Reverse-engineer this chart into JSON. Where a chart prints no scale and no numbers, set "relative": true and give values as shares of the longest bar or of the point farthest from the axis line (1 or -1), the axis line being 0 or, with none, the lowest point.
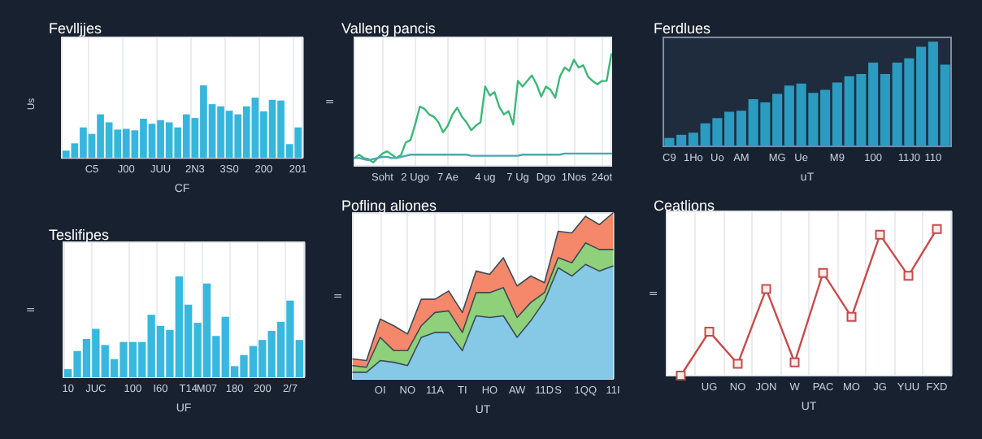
{
  "chart_data": [
    {
      "type": "bar",
      "title": "Fevlljjes",
      "xlabel": "CF",
      "ylabel": "Us",
      "color": "#35b6dc",
      "grid": "x",
      "relative": true,
      "categories": [
        null,
        null,
        null,
        "C5",
        null,
        null,
        null,
        "J00",
        null,
        null,
        null,
        "JUU",
        null,
        null,
        null,
        "2N3",
        null,
        null,
        null,
        "3S0",
        null,
        null,
        null,
        "200",
        null,
        null,
        null,
        "201"
      ],
      "values": [
        0.1,
        0.2,
        0.42,
        0.33,
        0.6,
        0.49,
        0.39,
        0.4,
        0.38,
        0.54,
        0.47,
        0.52,
        0.49,
        0.42,
        0.6,
        0.55,
        1,
        0.74,
        0.71,
        0.65,
        0.6,
        0.71,
        0.83,
        0.64,
        0.8,
        0.79,
        0.19,
        0.42
      ]
    },
    {
      "type": "line",
      "title": "Valleng pancis",
      "ylabel": "ll",
      "grid": "x",
      "marker": "none",
      "relative": true,
      "categories": [
        null,
        null,
        null,
        null,
        null,
        null,
        "Soht",
        null,
        null,
        null,
        null,
        null,
        null,
        "2 Ugo",
        null,
        null,
        null,
        null,
        null,
        null,
        "7 Ae",
        null,
        null,
        null,
        null,
        null,
        null,
        null,
        "4 ug",
        null,
        null,
        null,
        null,
        null,
        null,
        "7 Ug",
        null,
        null,
        null,
        null,
        null,
        "Dgo",
        null,
        null,
        null,
        null,
        null,
        "1Nos",
        null,
        null,
        null,
        null,
        null,
        "24ot",
        null,
        null
      ],
      "series": [
        {
          "color": "#3cb878",
          "values": [
            0.07,
            0.1,
            0.07,
            0.06,
            0.03,
            0.07,
            0.11,
            0.13,
            0.1,
            0.07,
            0.1,
            0.21,
            0.23,
            0.37,
            0.53,
            0.51,
            0.46,
            0.44,
            0.39,
            0.3,
            0.36,
            0.46,
            0.52,
            0.44,
            0.39,
            0.32,
            0.36,
            0.39,
            0.71,
            0.63,
            0.66,
            0.53,
            0.46,
            0.49,
            0.37,
            0.76,
            0.71,
            0.76,
            0.81,
            0.73,
            0.62,
            0.71,
            0.68,
            0.61,
            0.8,
            0.88,
            0.85,
            0.95,
            0.88,
            0.9,
            0.8,
            0.76,
            0.73,
            0.76,
            0.76,
            1
          ]
        },
        {
          "color": "#4aa8b0",
          "values": [
            0.07,
            0.07,
            0.06,
            0.05,
            0.06,
            0.07,
            0.08,
            0.08,
            0.07,
            0.07,
            0.08,
            0.09,
            0.1,
            0.1,
            0.1,
            0.1,
            0.1,
            0.1,
            0.1,
            0.1,
            0.1,
            0.1,
            0.1,
            0.1,
            0.1,
            0.09,
            0.09,
            0.09,
            0.09,
            0.09,
            0.09,
            0.09,
            0.09,
            0.09,
            0.09,
            0.09,
            0.1,
            0.1,
            0.1,
            0.1,
            0.1,
            0.1,
            0.1,
            0.1,
            0.1,
            0.11,
            0.11,
            0.11,
            0.11,
            0.11,
            0.11,
            0.11,
            0.11,
            0.11,
            0.11,
            0.11
          ]
        }
      ]
    },
    {
      "type": "bar",
      "title": "Ferdlues",
      "xlabel": "uT",
      "color": "#2b9bc0",
      "relative": true,
      "categories": [
        "C9",
        null,
        "1Ho",
        null,
        "Uo",
        null,
        "AM",
        null,
        null,
        "MG",
        null,
        "Ue",
        null,
        null,
        "M9",
        null,
        null,
        "100",
        null,
        null,
        "11J0",
        null,
        "110",
        null
      ],
      "values": [
        0.08,
        0.11,
        0.13,
        0.22,
        0.27,
        0.33,
        0.34,
        0.45,
        0.42,
        0.5,
        0.58,
        0.6,
        0.51,
        0.54,
        0.61,
        0.67,
        0.69,
        0.8,
        0.69,
        0.8,
        0.84,
        0.95,
        1,
        0.78
      ]
    },
    {
      "type": "bar",
      "title": "Teslifipes",
      "xlabel": "UF",
      "ylabel": "ll",
      "color": "#38b8de",
      "grid": "x",
      "relative": true,
      "categories": [
        "10",
        null,
        null,
        "JUC",
        null,
        null,
        null,
        "100",
        null,
        null,
        "I60",
        null,
        null,
        "T14",
        null,
        "M07",
        null,
        null,
        "180",
        null,
        null,
        "200",
        null,
        null,
        "2/7",
        null
      ],
      "values": [
        0.08,
        0.26,
        0.38,
        0.48,
        0.32,
        0.18,
        0.35,
        0.35,
        0.35,
        0.62,
        0.51,
        0.47,
        1,
        0.72,
        0.54,
        0.93,
        0.41,
        0.6,
        0.11,
        0.22,
        0.31,
        0.37,
        0.46,
        0.55,
        0.76,
        0.37
      ]
    },
    {
      "type": "area",
      "title": "Pofling aliones",
      "xlabel": "UT",
      "ylabel": "ll",
      "grid": "x",
      "stacked": true,
      "relative": true,
      "categories": [
        null,
        null,
        "OI",
        null,
        "NO",
        null,
        "11A",
        null,
        "TI",
        null,
        "HO",
        null,
        "AW",
        null,
        "11D",
        "S",
        null,
        "1QQ",
        null,
        "11I"
      ],
      "series": [
        {
          "color": "#86c9e6",
          "values": [
            0.04,
            0.04,
            0.11,
            0.1,
            0.08,
            0.25,
            0.28,
            0.28,
            0.17,
            0.38,
            0.37,
            0.38,
            0.25,
            0.35,
            0.47,
            0.67,
            0.62,
            0.69,
            0.65,
            0.68
          ]
        },
        {
          "color": "#8fd07a",
          "values": [
            0.04,
            0.03,
            0.14,
            0.07,
            0.09,
            0.07,
            0.12,
            0.13,
            0.11,
            0.14,
            0.15,
            0.17,
            0.12,
            0.11,
            0.05,
            0.06,
            0.08,
            0.13,
            0.13,
            0.1
          ]
        },
        {
          "color": "#f5886a",
          "values": [
            0.04,
            0.04,
            0.11,
            0.15,
            0.1,
            0.16,
            0.08,
            0.12,
            0.12,
            0.13,
            0.11,
            0.18,
            0.19,
            0.16,
            0.06,
            0.16,
            0.18,
            0.16,
            0.15,
            0.22
          ]
        }
      ]
    },
    {
      "type": "line",
      "title": "Ceatlions",
      "xlabel": "UT",
      "ylabel": "ll",
      "color": "#c84a4a",
      "grid": "x",
      "marker": "square",
      "relative": true,
      "categories": [
        null,
        "UG",
        "NO",
        "JON",
        "W",
        "PAC",
        "MO",
        "JG",
        "YUU",
        "FXD"
      ],
      "values": [
        0,
        0.3,
        0.08,
        0.59,
        0.09,
        0.7,
        0.4,
        0.96,
        0.68,
        1
      ]
    }
  ]
}
